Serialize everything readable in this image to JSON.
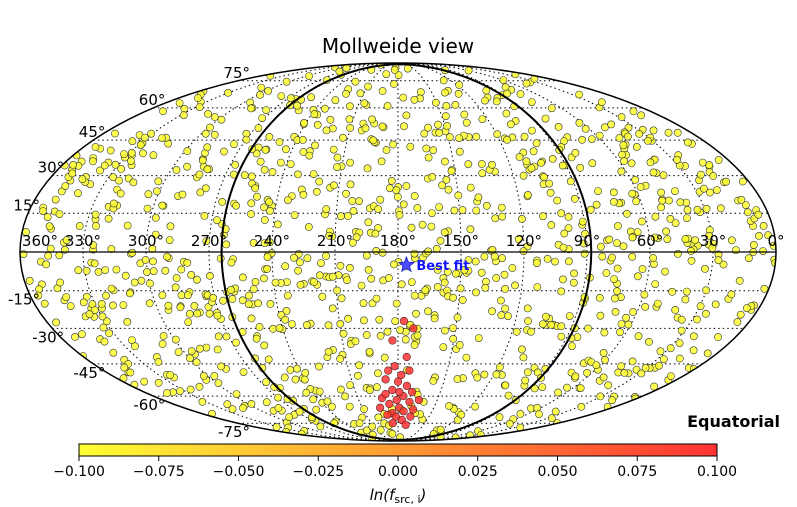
{
  "chart_data": {
    "type": "scatter",
    "projection": "mollweide",
    "title": "Mollweide view",
    "frame_label": "Equatorial",
    "lon_tick_labels": [
      "360°",
      "330°",
      "300°",
      "270°",
      "240°",
      "210°",
      "180°",
      "150°",
      "120°",
      "90°",
      "60°",
      "30°",
      "0°"
    ],
    "lon_ticks_deg": [
      360,
      330,
      300,
      270,
      240,
      210,
      180,
      150,
      120,
      90,
      60,
      30,
      0
    ],
    "lat_tick_labels": [
      "75°",
      "60°",
      "45°",
      "30°",
      "15°",
      "-15°",
      "-30°",
      "-45°",
      "-60°",
      "-75°"
    ],
    "lat_ticks_deg": [
      75,
      60,
      45,
      30,
      15,
      -15,
      -30,
      -45,
      -60,
      -75
    ],
    "best_fit": {
      "label": "Best fit",
      "ra": 176,
      "dec": -5
    },
    "contour": {
      "center_ra": 176,
      "center_dec": 0,
      "radius_deg": 88
    },
    "colorbar": {
      "label": "ln(f_src,i)",
      "label_main": "ln(f",
      "label_sub": "src, i",
      "label_close": ")",
      "range": [
        -0.1,
        0.1
      ],
      "tick_labels": [
        "−0.100",
        "−0.075",
        "−0.050",
        "−0.025",
        "0.000",
        "0.025",
        "0.050",
        "0.075",
        "0.100"
      ],
      "color_low": "#ffff33",
      "color_high": "#ff3333"
    },
    "low_points_count": 1200,
    "low_points_value": -0.1,
    "high_points": [
      {
        "ra": 178,
        "dec": -50,
        "v": 0.1
      },
      {
        "ra": 180,
        "dec": -53,
        "v": 0.1
      },
      {
        "ra": 174,
        "dec": -55,
        "v": 0.1
      },
      {
        "ra": 184,
        "dec": -57,
        "v": 0.1
      },
      {
        "ra": 176,
        "dec": -60,
        "v": 0.1
      },
      {
        "ra": 181,
        "dec": -62,
        "v": 0.1
      },
      {
        "ra": 171,
        "dec": -63,
        "v": 0.1
      },
      {
        "ra": 187,
        "dec": -64,
        "v": 0.1
      },
      {
        "ra": 179,
        "dec": -66,
        "v": 0.1
      },
      {
        "ra": 170,
        "dec": -58,
        "v": 0.1
      },
      {
        "ra": 192,
        "dec": -61,
        "v": 0.1
      },
      {
        "ra": 175,
        "dec": -68,
        "v": 0.1
      },
      {
        "ra": 185,
        "dec": -69,
        "v": 0.1
      },
      {
        "ra": 167,
        "dec": -67,
        "v": 0.1
      },
      {
        "ra": 182,
        "dec": -71,
        "v": 0.1
      },
      {
        "ra": 176,
        "dec": -73,
        "v": 0.1
      },
      {
        "ra": 190,
        "dec": -70,
        "v": 0.1
      },
      {
        "ra": 168,
        "dec": -71,
        "v": 0.1
      },
      {
        "ra": 182,
        "dec": -46,
        "v": 0.1
      },
      {
        "ra": 175,
        "dec": -42,
        "v": 0.1
      },
      {
        "ra": 183,
        "dec": -35,
        "v": 0.1
      },
      {
        "ra": 172,
        "dec": -30,
        "v": 0.1
      },
      {
        "ra": 177,
        "dec": -27,
        "v": 0.1
      },
      {
        "ra": 186,
        "dec": -48,
        "v": 0.1
      },
      {
        "ra": 188,
        "dec": -52,
        "v": 0.1
      },
      {
        "ra": 173,
        "dec": -48,
        "v": 0.1
      },
      {
        "ra": 195,
        "dec": -66,
        "v": 0.1
      },
      {
        "ra": 164,
        "dec": -62,
        "v": 0.1
      },
      {
        "ra": 186,
        "dec": -75,
        "v": 0.1
      },
      {
        "ra": 171,
        "dec": -76,
        "v": 0.1
      },
      {
        "ra": 179,
        "dec": -58,
        "v": 0.1
      },
      {
        "ra": 189,
        "dec": -59,
        "v": 0.1
      }
    ]
  }
}
